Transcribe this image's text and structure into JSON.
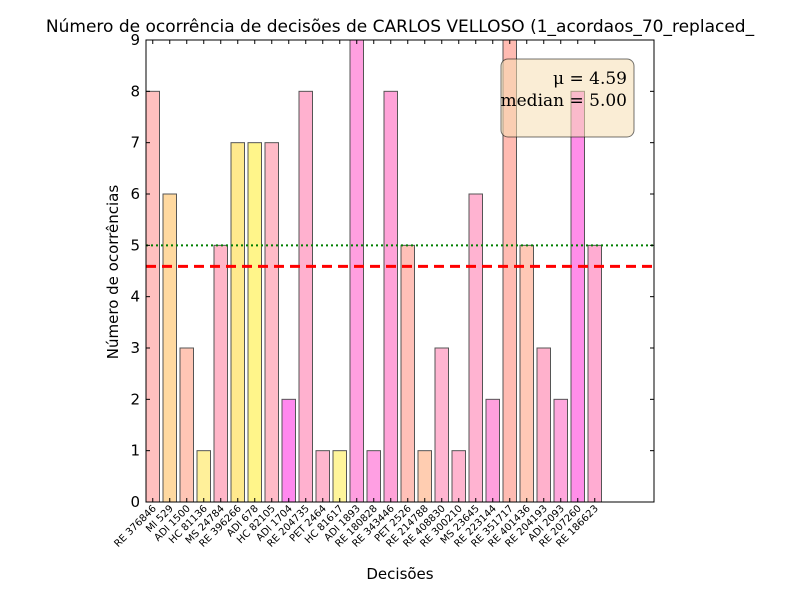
{
  "chart_data": {
    "type": "bar",
    "title": "Número de ocorrência de decisões de CARLOS VELLOSO (1_acordaos_70_replaced_",
    "xlabel": "Decisões",
    "ylabel": "Número de ocorrências",
    "ylim": [
      0,
      9
    ],
    "yticks": [
      "0",
      "1",
      "2",
      "3",
      "4",
      "5",
      "6",
      "7",
      "8",
      "9"
    ],
    "categories": [
      "RE 376846",
      "MI 529",
      "ADI 1500",
      "HC 81136",
      "MS 24784",
      "RE 396266",
      "ADI 678",
      "HC 82105",
      "ADI 1704",
      "RE 204735",
      "PET 2464",
      "HC 81617",
      "ADI 1893",
      "RE 180828",
      "RE 343446",
      "PET 2526",
      "RE 214788",
      "RE 408830",
      "RE 300210",
      "MS 23645",
      "RE 223144",
      "RE 351717",
      "RE 401436",
      "RE 204193",
      "ADI 2093",
      "RE 207260",
      "RE 186623"
    ],
    "values": [
      8,
      6,
      3,
      1,
      5,
      7,
      7,
      7,
      2,
      8,
      1,
      1,
      9,
      1,
      8,
      5,
      1,
      3,
      1,
      6,
      2,
      9,
      5,
      3,
      2,
      8,
      5
    ],
    "bar_colors": [
      "#ffc0bf",
      "#ffd9a0",
      "#ffc6b5",
      "#fff09a",
      "#ffb6c8",
      "#ffe98d",
      "#fff58a",
      "#ffbbc7",
      "#ff88ee",
      "#ffb1cf",
      "#ffb6ce",
      "#fff59b",
      "#ff9fe0",
      "#ff9fe3",
      "#ffa3d8",
      "#ffc0b8",
      "#ffcdb1",
      "#ffb5d1",
      "#ffb5cf",
      "#ffb3d1",
      "#ffa0de",
      "#ffbbb2",
      "#ffc8b6",
      "#ffb1cc",
      "#ffa7dd",
      "#ff8ee9",
      "#ffacd2"
    ],
    "mean": 4.59,
    "median": 5.0,
    "mean_line_color": "#ff0000",
    "median_line_color": "#008000",
    "annotation": {
      "mean_text": "μ = 4.59",
      "median_text": "median = 5.00",
      "box_color": "#f5deb3",
      "placement": "top-right"
    }
  }
}
